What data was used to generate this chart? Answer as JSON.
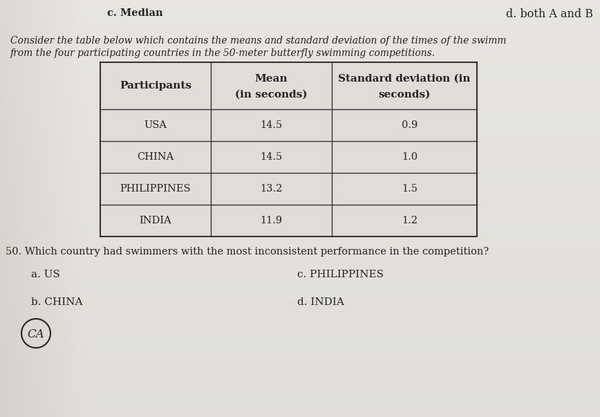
{
  "top_right_text": "d. both A and B",
  "top_left_text": "c. Median",
  "intro_line1": "Consider the table below which contains the means and standard deviation of the times of the swimm",
  "intro_line2": "from the four participating countries in the 50-meter butterfly swimming competitions.",
  "header1": "Participants",
  "header2": "Mean",
  "header2b": "(in seconds)",
  "header3": "Standard deviation (in",
  "header3b": "seconds)",
  "table_rows": [
    [
      "USA",
      "14.5",
      "0.9"
    ],
    [
      "CHINA",
      "14.5",
      "1.0"
    ],
    [
      "PHILIPPINES",
      "13.2",
      "1.5"
    ],
    [
      "INDIA",
      "11.9",
      "1.2"
    ]
  ],
  "question": "50. Which country had swimmers with the most inconsistent performance in the competition?",
  "choice_a": "a. US",
  "choice_b": "b. CHINA",
  "choice_c": "c. PHILIPPINES",
  "choice_d": "d. INDIA",
  "handwritten": "CA",
  "bg_light": "#e8e6e2",
  "bg_dark": "#b8b4ae",
  "text_color": "#222222",
  "table_fill": "#e0ddd8",
  "line_color": "#333333",
  "font_size": 10.5
}
